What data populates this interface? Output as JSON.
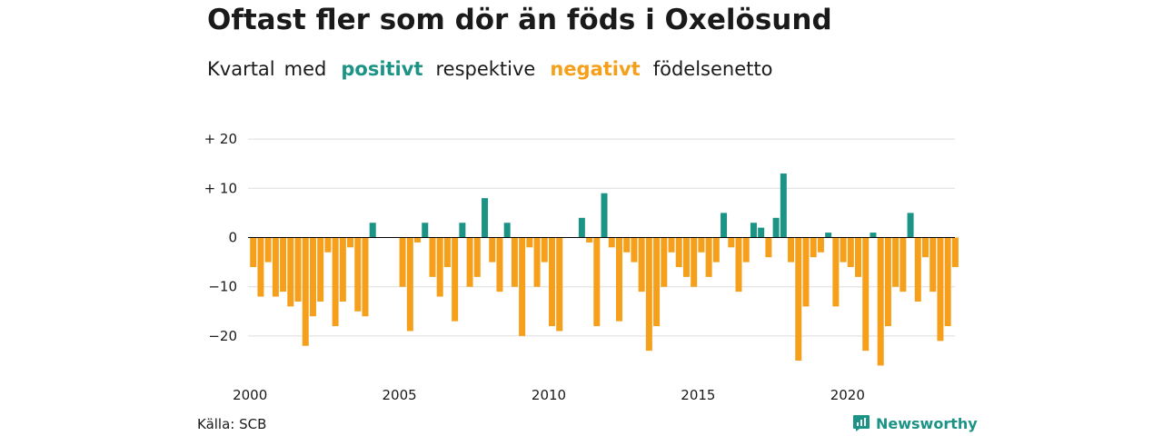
{
  "title": "Oftast fler som dör än föds i Oxelösund",
  "subtitle": {
    "part1": "Kvartal",
    "part2": "med",
    "positive": "positivt",
    "part3": "respektive",
    "negative": "negativt",
    "part4": "födelsenetto"
  },
  "source": "Källa: SCB",
  "brand": "Newsworthy",
  "colors": {
    "positive": "#1b9486",
    "negative": "#f59f1b",
    "grid": "#dddddd",
    "axis": "#000000"
  },
  "chart_data": {
    "type": "bar",
    "ylim": [
      -27,
      22
    ],
    "y_ticks": [
      {
        "value": 20,
        "label": "+ 20"
      },
      {
        "value": 10,
        "label": "+ 10"
      },
      {
        "value": 0,
        "label": "0"
      },
      {
        "value": -10,
        "label": "−10"
      },
      {
        "value": -20,
        "label": "−20"
      }
    ],
    "x_ticks": [
      "2000",
      "2005",
      "2010",
      "2015",
      "2020"
    ],
    "start_year": 2000,
    "quarters_per_year": 4,
    "values": [
      -6,
      -12,
      -5,
      -12,
      -11,
      -14,
      -13,
      -22,
      -16,
      -13,
      -3,
      -18,
      -13,
      -2,
      -15,
      -16,
      3,
      null,
      null,
      null,
      -10,
      -19,
      -1,
      3,
      -8,
      -12,
      -6,
      -17,
      3,
      -10,
      -8,
      8,
      -5,
      -11,
      3,
      -10,
      -20,
      -2,
      -10,
      -5,
      -18,
      -19,
      null,
      null,
      4,
      -1,
      -18,
      9,
      -2,
      -17,
      -3,
      -5,
      -11,
      -23,
      -18,
      -10,
      -3,
      -6,
      -8,
      -10,
      -3,
      -8,
      -5,
      5,
      -2,
      -11,
      -5,
      3,
      2,
      -4,
      4,
      13,
      -5,
      -25,
      -14,
      -4,
      -3,
      1,
      -14,
      -5,
      -6,
      -8,
      -23,
      1,
      -26,
      -18,
      -10,
      -11,
      5,
      -13,
      -4,
      -11,
      -21,
      -18,
      -6
    ]
  }
}
